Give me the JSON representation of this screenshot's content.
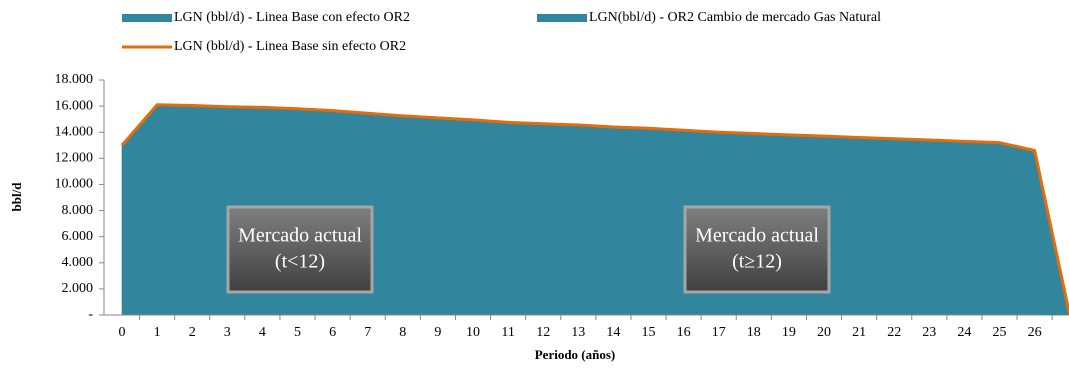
{
  "chart_data": {
    "type": "area",
    "legend": "top",
    "ylabel": "bbl/d",
    "xlabel": "Periodo (años)",
    "categories": [
      "0",
      "1",
      "2",
      "3",
      "4",
      "5",
      "6",
      "7",
      "8",
      "9",
      "10",
      "11",
      "12",
      "13",
      "14",
      "15",
      "16",
      "17",
      "18",
      "19",
      "20",
      "21",
      "22",
      "23",
      "24",
      "25",
      "26",
      null
    ],
    "ylim": [
      0,
      18000
    ],
    "yticks": [
      {
        "value": 0,
        "label": "-"
      },
      {
        "value": 2000,
        "label": "2.000"
      },
      {
        "value": 4000,
        "label": "4.000"
      },
      {
        "value": 6000,
        "label": "6.000"
      },
      {
        "value": 8000,
        "label": "8.000"
      },
      {
        "value": 10000,
        "label": "10.000"
      },
      {
        "value": 12000,
        "label": "12.000"
      },
      {
        "value": 14000,
        "label": "14.000"
      },
      {
        "value": 16000,
        "label": "16.000"
      },
      {
        "value": 18000,
        "label": "18.000"
      }
    ],
    "series": [
      {
        "name": "LGN (bbl/d) - Linea Base con efecto OR2",
        "color": "#31859C",
        "type": "area",
        "values": [
          13000,
          16100,
          16050,
          15950,
          15900,
          15800,
          15650,
          15450,
          15250,
          15100,
          14950,
          14750,
          0,
          0,
          0,
          0,
          0,
          0,
          0,
          0,
          0,
          0,
          0,
          0,
          0,
          0,
          0,
          0
        ]
      },
      {
        "name": "LGN(bbl/d) - OR2 Cambio de mercado Gas Natural",
        "color": "#31859C",
        "type": "area",
        "values": [
          0,
          0,
          0,
          0,
          0,
          0,
          0,
          0,
          0,
          0,
          0,
          0,
          14650,
          14550,
          14400,
          14300,
          14150,
          14000,
          13900,
          13800,
          13700,
          13600,
          13500,
          13400,
          13300,
          13200,
          12600,
          0
        ]
      },
      {
        "name": "LGN (bbl/d) - Linea Base sin efecto OR2",
        "color": "#E46C0A",
        "type": "line",
        "values": [
          13000,
          16100,
          16050,
          15950,
          15900,
          15800,
          15650,
          15450,
          15250,
          15100,
          14950,
          14750,
          14650,
          14550,
          14400,
          14300,
          14150,
          14000,
          13900,
          13800,
          13700,
          13600,
          13500,
          13400,
          13300,
          13200,
          12600,
          0
        ]
      }
    ],
    "annotations": [
      [
        "Mercado actual",
        "(t<12)"
      ],
      [
        "Mercado actual",
        "(t≥12)"
      ]
    ]
  }
}
